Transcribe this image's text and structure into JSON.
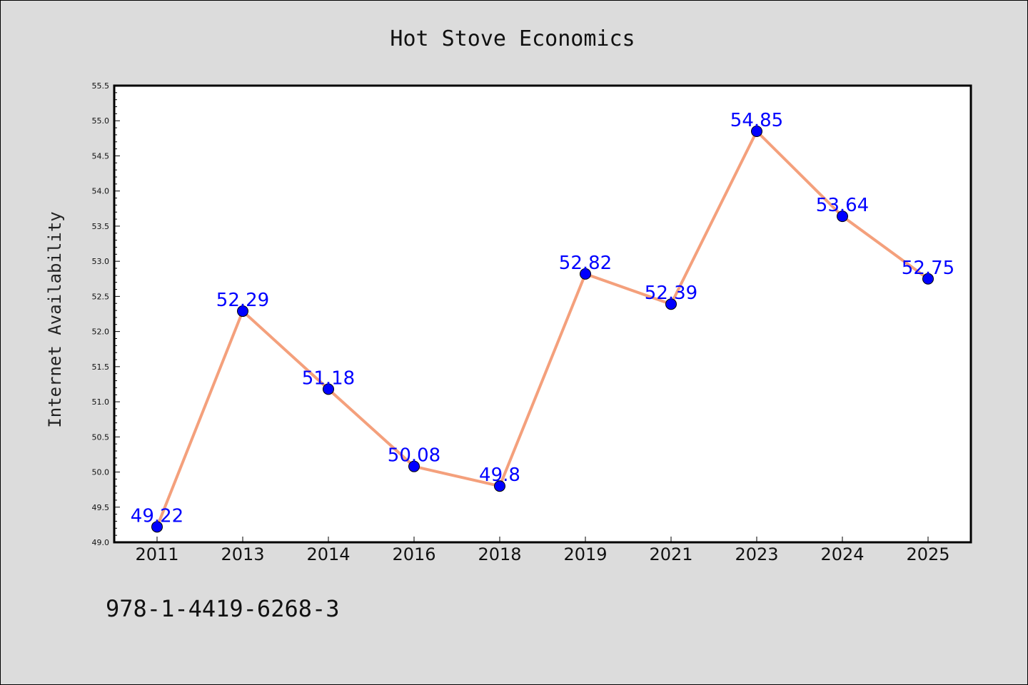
{
  "chart_data": {
    "type": "line",
    "title": "Hot Stove Economics",
    "xlabel": "",
    "ylabel": "Internet Availability",
    "categories": [
      "2011",
      "2013",
      "2014",
      "2016",
      "2018",
      "2019",
      "2021",
      "2023",
      "2024",
      "2025"
    ],
    "series": [
      {
        "values": [
          49.22,
          52.29,
          51.18,
          50.08,
          49.8,
          52.82,
          52.39,
          54.85,
          53.64,
          52.75
        ]
      }
    ],
    "data_labels": [
      "49.22",
      "52.29",
      "51.18",
      "50.08",
      "49.8",
      "52.82",
      "52.39",
      "54.85",
      "53.64",
      "52.75"
    ],
    "ylim": [
      49.0,
      55.5
    ],
    "yticks": [
      "49.0",
      "49.5",
      "50.0",
      "50.5",
      "51.0",
      "51.5",
      "52.0",
      "52.5",
      "53.0",
      "53.5",
      "54.0",
      "54.5",
      "55.0",
      "55.5"
    ],
    "grid": false,
    "legend": "none",
    "colors": {
      "line": "#f4a07c",
      "marker": "#0000ff",
      "label": "#0000ff",
      "plot_bg": "#ffffff",
      "figure_bg": "#dcdcdc"
    }
  },
  "footer": {
    "isbn": "978-1-4419-6268-3"
  }
}
